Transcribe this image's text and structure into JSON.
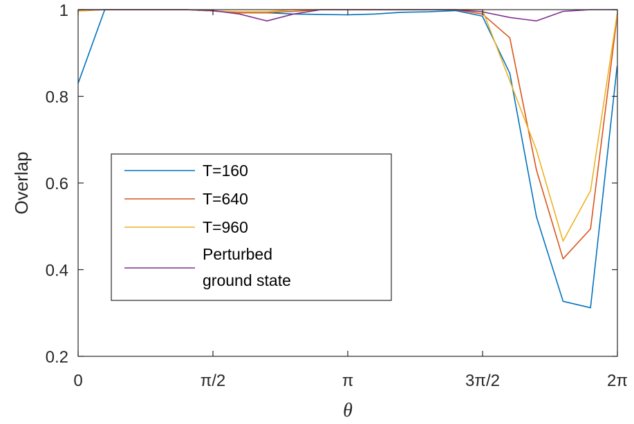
{
  "chart_data": {
    "type": "line",
    "xlabel": "θ",
    "ylabel": "Overlap",
    "xlim": [
      0,
      6.2832
    ],
    "ylim": [
      0.2,
      1
    ],
    "grid": false,
    "legend_position": "center-left",
    "x_ticks": [
      {
        "value": 0,
        "label": "0"
      },
      {
        "value": 1.5708,
        "label": "π/2"
      },
      {
        "value": 3.1416,
        "label": "π"
      },
      {
        "value": 4.7124,
        "label": "3π/2"
      },
      {
        "value": 6.2832,
        "label": "2π"
      }
    ],
    "y_ticks": [
      {
        "value": 0.2,
        "label": "0.2"
      },
      {
        "value": 0.4,
        "label": "0.4"
      },
      {
        "value": 0.6,
        "label": "0.6"
      },
      {
        "value": 0.8,
        "label": "0.8"
      },
      {
        "value": 1.0,
        "label": "1"
      }
    ],
    "series": [
      {
        "name": "T=160",
        "color": "#0072BD",
        "points": [
          [
            0,
            0.83
          ],
          [
            0.31,
            1.0
          ],
          [
            0.63,
            1.0
          ],
          [
            0.94,
            1.0
          ],
          [
            1.26,
            1.0
          ],
          [
            1.57,
            0.997
          ],
          [
            1.88,
            0.993
          ],
          [
            2.2,
            0.993
          ],
          [
            2.51,
            0.99
          ],
          [
            2.83,
            0.989
          ],
          [
            3.14,
            0.988
          ],
          [
            3.46,
            0.99
          ],
          [
            3.77,
            0.994
          ],
          [
            4.08,
            0.995
          ],
          [
            4.4,
            0.998
          ],
          [
            4.71,
            0.985
          ],
          [
            5.03,
            0.853
          ],
          [
            5.34,
            0.522
          ],
          [
            5.65,
            0.327
          ],
          [
            5.97,
            0.312
          ],
          [
            6.28,
            0.87
          ]
        ]
      },
      {
        "name": "T=640",
        "color": "#D95319",
        "points": [
          [
            0,
            0.997
          ],
          [
            0.31,
            1.0
          ],
          [
            0.63,
            1.0
          ],
          [
            0.94,
            1.0
          ],
          [
            1.26,
            1.0
          ],
          [
            1.57,
            0.997
          ],
          [
            1.88,
            0.993
          ],
          [
            2.2,
            0.993
          ],
          [
            2.51,
            0.996
          ],
          [
            2.83,
            1.0
          ],
          [
            3.14,
            1.0
          ],
          [
            3.46,
            1.0
          ],
          [
            3.77,
            1.0
          ],
          [
            4.08,
            1.0
          ],
          [
            4.4,
            1.0
          ],
          [
            4.71,
            0.99
          ],
          [
            5.03,
            0.935
          ],
          [
            5.34,
            0.63
          ],
          [
            5.65,
            0.425
          ],
          [
            5.97,
            0.494
          ],
          [
            6.28,
            0.985
          ]
        ]
      },
      {
        "name": "T=960",
        "color": "#EDB120",
        "points": [
          [
            0,
            0.997
          ],
          [
            0.31,
            1.0
          ],
          [
            0.63,
            1.0
          ],
          [
            0.94,
            1.0
          ],
          [
            1.26,
            1.0
          ],
          [
            1.57,
            0.997
          ],
          [
            1.88,
            0.995
          ],
          [
            2.2,
            0.995
          ],
          [
            2.51,
            1.0
          ],
          [
            2.83,
            1.0
          ],
          [
            3.14,
            1.0
          ],
          [
            3.46,
            1.0
          ],
          [
            3.77,
            1.0
          ],
          [
            4.08,
            1.0
          ],
          [
            4.4,
            1.0
          ],
          [
            4.71,
            1.0
          ],
          [
            5.34,
            0.676
          ],
          [
            5.65,
            0.466
          ],
          [
            5.97,
            0.582
          ],
          [
            6.28,
            0.99
          ]
        ]
      },
      {
        "name": "Perturbed ground state",
        "label_lines": [
          "Perturbed",
          "ground state"
        ],
        "color": "#7E2F8E",
        "points": [
          [
            0,
            1.0
          ],
          [
            0.31,
            1.0
          ],
          [
            0.63,
            1.0
          ],
          [
            0.94,
            1.0
          ],
          [
            1.26,
            1.0
          ],
          [
            1.57,
            0.998
          ],
          [
            1.88,
            0.99
          ],
          [
            2.2,
            0.974
          ],
          [
            2.51,
            0.99
          ],
          [
            2.83,
            1.0
          ],
          [
            3.14,
            1.0
          ],
          [
            3.46,
            1.0
          ],
          [
            3.77,
            1.0
          ],
          [
            4.08,
            1.0
          ],
          [
            4.4,
            1.0
          ],
          [
            4.71,
            0.995
          ],
          [
            5.03,
            0.982
          ],
          [
            5.34,
            0.974
          ],
          [
            5.65,
            0.996
          ],
          [
            5.97,
            1.0
          ],
          [
            6.28,
            1.0
          ]
        ]
      }
    ]
  }
}
